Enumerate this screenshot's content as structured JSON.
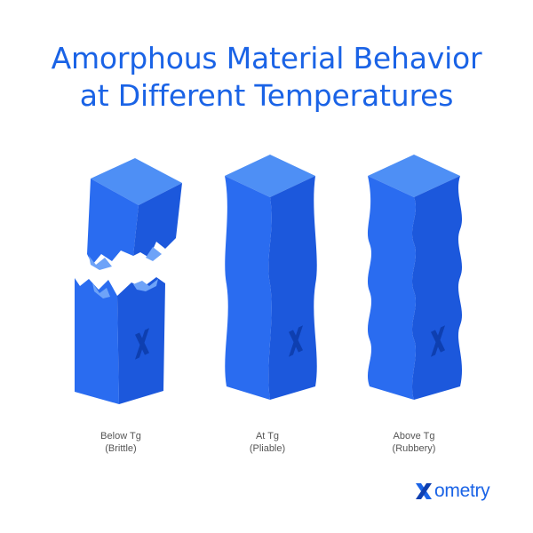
{
  "title": {
    "line1": "Amorphous Material Behavior",
    "line2": "at Different Temperatures"
  },
  "columns": [
    {
      "label": "Below Tg",
      "sublabel": "(Brittle)"
    },
    {
      "label": "At Tg",
      "sublabel": "(Pliable)"
    },
    {
      "label": "Above Tg",
      "sublabel": "(Rubbery)"
    }
  ],
  "brand": {
    "name": "ometry",
    "logo_name": "xometry-logo"
  },
  "colors": {
    "title": "#1a63e6",
    "top_face": "#4e8ff5",
    "left_face": "#2a6cf0",
    "right_face": "#1c58dc",
    "mark": "#0e3fb0"
  }
}
